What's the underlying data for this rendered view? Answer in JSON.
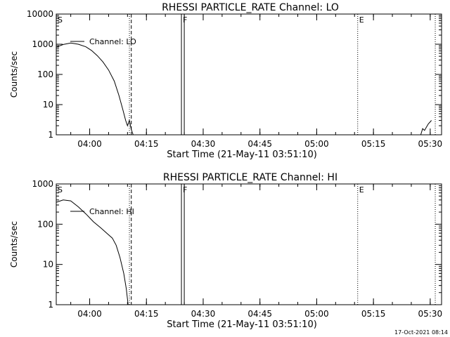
{
  "chart_data": [
    {
      "type": "line",
      "title": "RHESSI PARTICLE_RATE Channel: LO",
      "xlabel": "Start Time (21-May-11 03:51:10)",
      "ylabel": "Counts/sec",
      "scale": {
        "x": "time",
        "y": "log"
      },
      "xlim": [
        "03:51:10",
        "05:33:00"
      ],
      "ylim": [
        1,
        10000
      ],
      "x_ticks": [
        "04:00",
        "04:15",
        "04:30",
        "04:45",
        "05:00",
        "05:15",
        "05:30"
      ],
      "y_ticks": [
        "1",
        "10",
        "100",
        "1000",
        "10000"
      ],
      "legend": {
        "label": "Channel: LO",
        "position": "top-left"
      },
      "markers": [
        {
          "label": "S",
          "time": "03:51:10",
          "style": "dotted"
        },
        {
          "label": "",
          "time": "04:10:30",
          "style": "dotted"
        },
        {
          "label": "",
          "time": "04:11:00",
          "style": "dashed"
        },
        {
          "label": "F",
          "time": "04:24:15",
          "style": "solid"
        },
        {
          "label": "",
          "time": "04:25:00",
          "style": "solid"
        },
        {
          "label": "E",
          "time": "05:10:50",
          "style": "dotted"
        },
        {
          "label": "",
          "time": "05:31:20",
          "style": "dotted"
        }
      ],
      "series": [
        {
          "name": "Channel: LO",
          "segments": [
            [
              [
                "03:51:10",
                800
              ],
              [
                "03:53:00",
                980
              ],
              [
                "03:55:00",
                1100
              ],
              [
                "03:57:00",
                1000
              ],
              [
                "03:59:00",
                820
              ],
              [
                "04:00:30",
                620
              ],
              [
                "04:02:00",
                420
              ],
              [
                "04:03:30",
                260
              ],
              [
                "04:05:00",
                140
              ],
              [
                "04:06:30",
                60
              ],
              [
                "04:07:45",
                20
              ],
              [
                "04:08:45",
                7
              ],
              [
                "04:09:30",
                3
              ],
              [
                "04:10:00",
                2
              ],
              [
                "04:10:30",
                3
              ],
              [
                "04:11:00",
                1.5
              ],
              [
                "04:11:30",
                1
              ]
            ],
            [
              [
                "05:27:30",
                1
              ],
              [
                "05:28:00",
                1.6
              ],
              [
                "05:28:30",
                1.4
              ],
              [
                "05:29:00",
                1.8
              ],
              [
                "05:29:30",
                2.3
              ],
              [
                "05:30:00",
                2.7
              ],
              [
                "05:30:20",
                3
              ]
            ]
          ]
        }
      ]
    },
    {
      "type": "line",
      "title": "RHESSI PARTICLE_RATE Channel: HI",
      "xlabel": "Start Time (21-May-11 03:51:10)",
      "ylabel": "Counts/sec",
      "scale": {
        "x": "time",
        "y": "log"
      },
      "xlim": [
        "03:51:10",
        "05:33:00"
      ],
      "ylim": [
        1,
        1000
      ],
      "x_ticks": [
        "04:00",
        "04:15",
        "04:30",
        "04:45",
        "05:00",
        "05:15",
        "05:30"
      ],
      "y_ticks": [
        "1",
        "10",
        "100",
        "1000"
      ],
      "legend": {
        "label": "Channel: HI",
        "position": "top-left"
      },
      "markers": [
        {
          "label": "S",
          "time": "03:51:10",
          "style": "dotted"
        },
        {
          "label": "",
          "time": "04:10:30",
          "style": "dotted"
        },
        {
          "label": "",
          "time": "04:11:00",
          "style": "dashed"
        },
        {
          "label": "F",
          "time": "04:24:15",
          "style": "solid"
        },
        {
          "label": "",
          "time": "04:25:00",
          "style": "solid"
        },
        {
          "label": "E",
          "time": "05:10:50",
          "style": "dotted"
        },
        {
          "label": "",
          "time": "05:31:20",
          "style": "dotted"
        }
      ],
      "series": [
        {
          "name": "Channel: HI",
          "segments": [
            [
              [
                "03:51:10",
                350
              ],
              [
                "03:53:00",
                400
              ],
              [
                "03:55:00",
                380
              ],
              [
                "03:57:00",
                270
              ],
              [
                "03:59:00",
                180
              ],
              [
                "04:01:00",
                115
              ],
              [
                "04:03:00",
                80
              ],
              [
                "04:04:30",
                60
              ],
              [
                "04:06:00",
                45
              ],
              [
                "04:07:00",
                30
              ],
              [
                "04:08:00",
                15
              ],
              [
                "04:09:00",
                6
              ],
              [
                "04:09:40",
                2.5
              ],
              [
                "04:10:10",
                1
              ]
            ]
          ]
        }
      ]
    }
  ],
  "footer": {
    "timestamp": "17-Oct-2021 08:14"
  }
}
